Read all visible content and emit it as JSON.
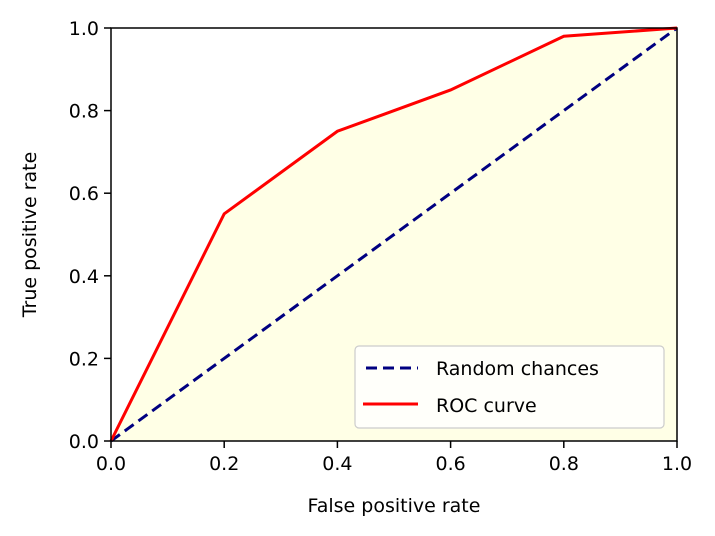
{
  "chart_data": {
    "type": "line",
    "title": "",
    "xlabel": "False positive rate",
    "ylabel": "True positive rate",
    "xlim": [
      0.0,
      1.0
    ],
    "ylim": [
      0.0,
      1.0
    ],
    "xticks": [
      "0.0",
      "0.2",
      "0.4",
      "0.6",
      "0.8",
      "1.0"
    ],
    "yticks": [
      "0.0",
      "0.2",
      "0.4",
      "0.6",
      "0.8",
      "1.0"
    ],
    "grid": false,
    "legend_position": "lower-right",
    "fill_under": {
      "series": "ROC curve",
      "color": "#ffffe6"
    },
    "series": [
      {
        "name": "Random chances",
        "style": "dashed",
        "color": "#000080",
        "x": [
          0.0,
          1.0
        ],
        "y": [
          0.0,
          1.0
        ]
      },
      {
        "name": "ROC curve",
        "style": "solid",
        "color": "#ff0000",
        "x": [
          0.0,
          0.2,
          0.4,
          0.6,
          0.8,
          1.0
        ],
        "y": [
          0.0,
          0.55,
          0.75,
          0.85,
          0.98,
          1.0
        ]
      }
    ]
  }
}
